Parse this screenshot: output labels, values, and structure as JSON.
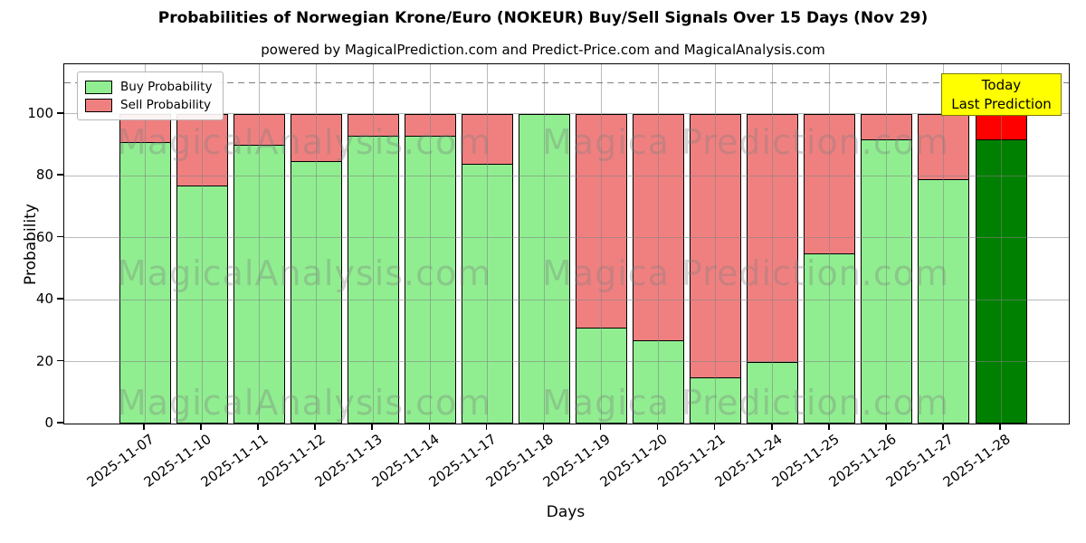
{
  "title": "Probabilities of Norwegian Krone/Euro (NOKEUR) Buy/Sell Signals Over 15 Days (Nov 29)",
  "subtitle": "powered by MagicalPrediction.com and Predict-Price.com and MagicalAnalysis.com",
  "legend": {
    "items": [
      {
        "label": "Buy Probability",
        "color": "#90EE90"
      },
      {
        "label": "Sell Probability",
        "color": "#F08080"
      }
    ]
  },
  "annotation_box": {
    "line1": "Today",
    "line2": "Last Prediction",
    "bg": "#FFFF00"
  },
  "axes": {
    "ylabel": "Probability",
    "xlabel": "Days",
    "yticks": [
      0,
      20,
      40,
      60,
      80,
      100
    ],
    "ylim": [
      0,
      116
    ],
    "grid": true
  },
  "watermarks": {
    "left_text": "MagicalAnalysis.com",
    "right_text": "Magica Prediction.com",
    "rows": 3
  },
  "chart_data": {
    "type": "bar",
    "stacked": true,
    "title": "Probabilities of Norwegian Krone/Euro (NOKEUR) Buy/Sell Signals Over 15 Days (Nov 29)",
    "xlabel": "Days",
    "ylabel": "Probability",
    "ylim": [
      0,
      116
    ],
    "legend_position": "upper left",
    "dashed_line_y": 110,
    "categories": [
      "2025-11-07",
      "2025-11-10",
      "2025-11-11",
      "2025-11-12",
      "2025-11-13",
      "2025-11-14",
      "2025-11-17",
      "2025-11-18",
      "2025-11-19",
      "2025-11-20",
      "2025-11-21",
      "2025-11-24",
      "2025-11-25",
      "2025-11-26",
      "2025-11-27",
      "2025-11-28"
    ],
    "series": [
      {
        "name": "Buy Probability",
        "color": "#90EE90",
        "values": [
          91,
          77,
          90,
          85,
          93,
          93,
          84,
          100,
          31,
          27,
          15,
          20,
          55,
          92,
          79,
          92
        ]
      },
      {
        "name": "Sell Probability",
        "color": "#F08080",
        "values": [
          9,
          23,
          10,
          15,
          7,
          7,
          16,
          0,
          69,
          73,
          85,
          80,
          45,
          8,
          21,
          8
        ]
      }
    ],
    "today_bar_colors": {
      "buy": "#008000",
      "sell": "#FF0000"
    }
  }
}
